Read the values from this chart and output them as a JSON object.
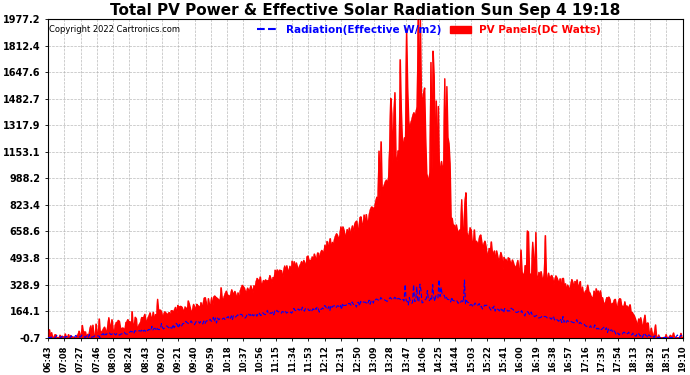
{
  "title": "Total PV Power & Effective Solar Radiation Sun Sep 4 19:18",
  "copyright": "Copyright 2022 Cartronics.com",
  "legend_radiation": "Radiation(Effective W/m2)",
  "legend_pv": "PV Panels(DC Watts)",
  "yticks": [
    1977.2,
    1812.4,
    1647.6,
    1482.7,
    1317.9,
    1153.1,
    988.2,
    823.4,
    658.6,
    493.8,
    328.9,
    164.1,
    -0.7
  ],
  "ymin": -0.7,
  "ymax": 1977.2,
  "xtick_labels": [
    "06:43",
    "07:08",
    "07:27",
    "07:46",
    "08:05",
    "08:24",
    "08:43",
    "09:02",
    "09:21",
    "09:40",
    "09:59",
    "10:18",
    "10:37",
    "10:56",
    "11:15",
    "11:34",
    "11:53",
    "12:12",
    "12:31",
    "12:50",
    "13:09",
    "13:28",
    "13:47",
    "14:06",
    "14:25",
    "14:44",
    "15:03",
    "15:22",
    "15:41",
    "16:00",
    "16:19",
    "16:38",
    "16:57",
    "17:16",
    "17:35",
    "17:54",
    "18:13",
    "18:32",
    "18:51",
    "19:10"
  ],
  "background_color": "#ffffff",
  "title_fontsize": 11,
  "radiation_color": "#0000ff",
  "pv_fill_color": "#ff0000",
  "grid_color": "#aaaaaa",
  "copyright_color": "#000000"
}
